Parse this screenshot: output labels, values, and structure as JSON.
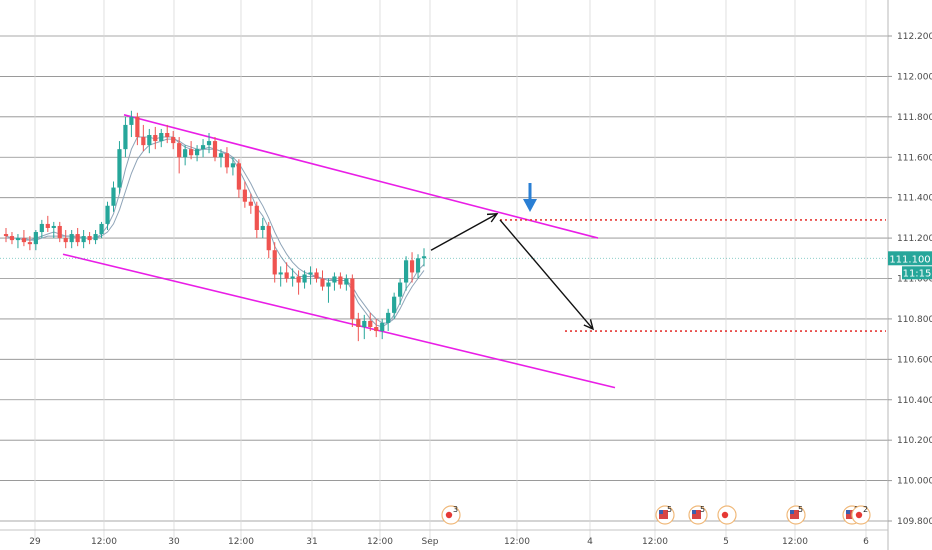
{
  "chart_data": {
    "type": "candlestick",
    "ylim": [
      109.78,
      112.28
    ],
    "y_ticks": [
      "112.200",
      "112.000",
      "111.800",
      "111.600",
      "111.400",
      "111.200",
      "111.000",
      "110.800",
      "110.600",
      "110.400",
      "110.200",
      "110.000",
      "109.800"
    ],
    "x_ticks": [
      "29",
      "12:00",
      "30",
      "12:00",
      "31",
      "12:00",
      "Sep",
      "12:00",
      "4",
      "12:00",
      "5",
      "12:00",
      "6"
    ],
    "price_label": "111.100",
    "time_label": "11:15",
    "grid": true,
    "colors": {
      "up": "#26a69a",
      "down": "#ef5350",
      "channel": "#e91ee6",
      "level": "#e53935",
      "ma": "#8fa4b8",
      "marker": "#2a7fd4",
      "badge": "#26a69a"
    },
    "candles": [
      [
        111.22,
        111.25,
        111.18,
        111.21
      ],
      [
        111.21,
        111.23,
        111.17,
        111.19
      ],
      [
        111.19,
        111.22,
        111.15,
        111.2
      ],
      [
        111.2,
        111.24,
        111.16,
        111.18
      ],
      [
        111.18,
        111.21,
        111.14,
        111.17
      ],
      [
        111.17,
        111.24,
        111.14,
        111.23
      ],
      [
        111.23,
        111.29,
        111.2,
        111.27
      ],
      [
        111.27,
        111.31,
        111.23,
        111.25
      ],
      [
        111.25,
        111.28,
        111.2,
        111.26
      ],
      [
        111.26,
        111.28,
        111.18,
        111.2
      ],
      [
        111.2,
        111.24,
        111.15,
        111.18
      ],
      [
        111.18,
        111.24,
        111.15,
        111.22
      ],
      [
        111.22,
        111.25,
        111.16,
        111.18
      ],
      [
        111.18,
        111.24,
        111.15,
        111.21
      ],
      [
        111.21,
        111.23,
        111.17,
        111.19
      ],
      [
        111.19,
        111.24,
        111.17,
        111.22
      ],
      [
        111.22,
        111.28,
        111.2,
        111.27
      ],
      [
        111.27,
        111.38,
        111.24,
        111.36
      ],
      [
        111.36,
        111.48,
        111.33,
        111.45
      ],
      [
        111.45,
        111.68,
        111.42,
        111.64
      ],
      [
        111.64,
        111.8,
        111.6,
        111.76
      ],
      [
        111.76,
        111.83,
        111.7,
        111.8
      ],
      [
        111.8,
        111.82,
        111.66,
        111.7
      ],
      [
        111.7,
        111.76,
        111.63,
        111.66
      ],
      [
        111.66,
        111.74,
        111.62,
        111.71
      ],
      [
        111.71,
        111.75,
        111.64,
        111.68
      ],
      [
        111.68,
        111.74,
        111.65,
        111.72
      ],
      [
        111.72,
        111.76,
        111.67,
        111.7
      ],
      [
        111.7,
        111.73,
        111.64,
        111.67
      ],
      [
        111.67,
        111.7,
        111.52,
        111.6
      ],
      [
        111.6,
        111.66,
        111.56,
        111.64
      ],
      [
        111.64,
        111.68,
        111.59,
        111.61
      ],
      [
        111.61,
        111.66,
        111.58,
        111.64
      ],
      [
        111.64,
        111.69,
        111.6,
        111.66
      ],
      [
        111.66,
        111.72,
        111.62,
        111.68
      ],
      [
        111.68,
        111.7,
        111.58,
        111.6
      ],
      [
        111.6,
        111.64,
        111.55,
        111.62
      ],
      [
        111.62,
        111.65,
        111.52,
        111.55
      ],
      [
        111.55,
        111.6,
        111.51,
        111.57
      ],
      [
        111.57,
        111.59,
        111.4,
        111.44
      ],
      [
        111.44,
        111.48,
        111.35,
        111.38
      ],
      [
        111.38,
        111.42,
        111.32,
        111.36
      ],
      [
        111.36,
        111.38,
        111.2,
        111.24
      ],
      [
        111.24,
        111.3,
        111.2,
        111.26
      ],
      [
        111.26,
        111.28,
        111.1,
        111.14
      ],
      [
        111.14,
        111.18,
        110.98,
        111.02
      ],
      [
        111.02,
        111.06,
        110.96,
        111.03
      ],
      [
        111.03,
        111.08,
        110.98,
        111.0
      ],
      [
        111.0,
        111.05,
        110.96,
        111.01
      ],
      [
        111.01,
        111.04,
        110.92,
        110.98
      ],
      [
        110.98,
        111.04,
        110.95,
        111.02
      ],
      [
        111.02,
        111.06,
        110.97,
        111.03
      ],
      [
        111.03,
        111.05,
        110.98,
        111.0
      ],
      [
        111.0,
        111.04,
        110.94,
        110.96
      ],
      [
        110.96,
        111.0,
        110.88,
        110.98
      ],
      [
        110.98,
        111.03,
        110.94,
        111.01
      ],
      [
        111.01,
        111.03,
        110.95,
        110.97
      ],
      [
        110.97,
        111.02,
        110.94,
        111.0
      ],
      [
        111.0,
        111.02,
        110.76,
        110.8
      ],
      [
        110.8,
        110.83,
        110.69,
        110.76
      ],
      [
        110.76,
        110.82,
        110.7,
        110.79
      ],
      [
        110.79,
        110.83,
        110.74,
        110.76
      ],
      [
        110.76,
        110.8,
        110.71,
        110.74
      ],
      [
        110.74,
        110.8,
        110.7,
        110.78
      ],
      [
        110.78,
        110.85,
        110.74,
        110.83
      ],
      [
        110.83,
        110.93,
        110.8,
        110.91
      ],
      [
        110.91,
        111.0,
        110.87,
        110.98
      ],
      [
        110.98,
        111.11,
        110.94,
        111.09
      ],
      [
        111.09,
        111.13,
        110.98,
        111.03
      ],
      [
        111.03,
        111.12,
        111.0,
        111.1
      ],
      [
        111.1,
        111.15,
        111.06,
        111.11
      ]
    ],
    "ma_fast": [
      111.21,
      111.2,
      111.2,
      111.19,
      111.19,
      111.2,
      111.21,
      111.22,
      111.23,
      111.22,
      111.21,
      111.21,
      111.2,
      111.2,
      111.2,
      111.2,
      111.22,
      111.26,
      111.32,
      111.42,
      111.54,
      111.64,
      111.7,
      111.7,
      111.7,
      111.69,
      111.7,
      111.7,
      111.7,
      111.67,
      111.65,
      111.64,
      111.63,
      111.64,
      111.65,
      111.64,
      111.63,
      111.61,
      111.59,
      111.54,
      111.48,
      111.42,
      111.35,
      111.31,
      111.25,
      111.16,
      111.11,
      111.07,
      111.04,
      111.01,
      111.01,
      111.01,
      111.01,
      111.0,
      110.99,
      110.99,
      110.99,
      110.99,
      110.94,
      110.88,
      110.84,
      110.8,
      110.77,
      110.76,
      110.78,
      110.82,
      110.88,
      110.95,
      110.99,
      111.04,
      111.07
    ],
    "ma_slow": [
      111.2,
      111.2,
      111.2,
      111.2,
      111.19,
      111.19,
      111.2,
      111.21,
      111.21,
      111.21,
      111.21,
      111.21,
      111.21,
      111.2,
      111.2,
      111.2,
      111.21,
      111.23,
      111.27,
      111.34,
      111.43,
      111.52,
      111.59,
      111.63,
      111.66,
      111.67,
      111.68,
      111.69,
      111.69,
      111.68,
      111.66,
      111.65,
      111.64,
      111.64,
      111.64,
      111.64,
      111.63,
      111.62,
      111.6,
      111.57,
      111.52,
      111.47,
      111.41,
      111.36,
      111.3,
      111.23,
      111.17,
      111.12,
      111.08,
      111.05,
      111.03,
      111.02,
      111.01,
      111.0,
      111.0,
      110.99,
      110.99,
      110.99,
      110.96,
      110.91,
      110.87,
      110.83,
      110.8,
      110.78,
      110.78,
      110.8,
      110.85,
      110.91,
      110.96,
      111.0,
      111.04
    ]
  },
  "events": {
    "e1": "3",
    "e2": "5",
    "e3": "5",
    "e4": "5",
    "e5": "8",
    "e6": "2"
  }
}
